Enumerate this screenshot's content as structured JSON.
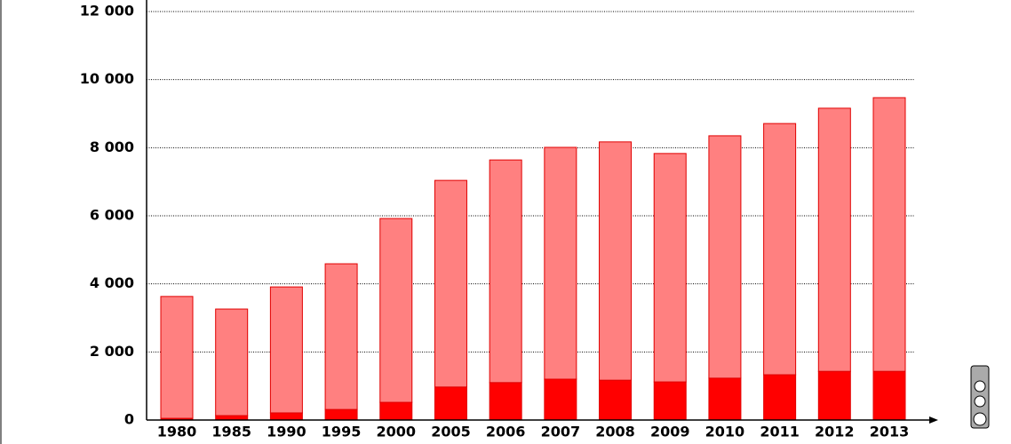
{
  "chart_data": {
    "type": "stacked-bar",
    "categories": [
      "1980",
      "1985",
      "1990",
      "1995",
      "2000",
      "2005",
      "2006",
      "2007",
      "2008",
      "2009",
      "2010",
      "2011",
      "2012",
      "2013"
    ],
    "series": [
      {
        "color": "#ff0000",
        "values": [
          50,
          130,
          210,
          310,
          520,
          970,
          1100,
          1200,
          1170,
          1120,
          1230,
          1330,
          1430,
          1430
        ]
      },
      {
        "color": "#ff8080",
        "values": [
          3580,
          3130,
          3700,
          4280,
          5400,
          6070,
          6540,
          6810,
          7000,
          6710,
          7120,
          7380,
          7730,
          8040
        ]
      }
    ],
    "ylim": [
      0,
      12000
    ],
    "yticks": [
      0,
      {
        "value": 2000,
        "label": "2 000"
      },
      {
        "value": 4000,
        "label": "4 000"
      },
      {
        "value": 6000,
        "label": "6 000"
      },
      {
        "value": 8000,
        "label": "8 000"
      },
      {
        "value": 10000,
        "label": "10 000"
      },
      {
        "value": 12000,
        "label": "12 000"
      }
    ],
    "grid": true
  }
}
